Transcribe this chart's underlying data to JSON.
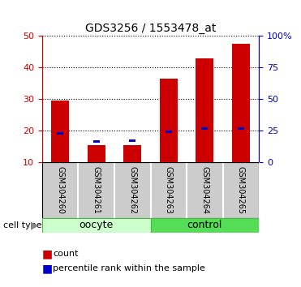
{
  "title": "GDS3256 / 1553478_at",
  "samples": [
    "GSM304260",
    "GSM304261",
    "GSM304262",
    "GSM304263",
    "GSM304264",
    "GSM304265"
  ],
  "count_values": [
    29.5,
    15.5,
    15.5,
    36.5,
    43.0,
    47.5
  ],
  "percentile_values": [
    23.0,
    16.5,
    17.0,
    24.0,
    26.5,
    26.5
  ],
  "groups": [
    {
      "label": "oocyte",
      "indices": [
        0,
        1,
        2
      ],
      "color": "#ccffcc",
      "edge": "#44bb44"
    },
    {
      "label": "control",
      "indices": [
        3,
        4,
        5
      ],
      "color": "#55dd55",
      "edge": "#44bb44"
    }
  ],
  "ylim_left": [
    10,
    50
  ],
  "ylim_right": [
    0,
    100
  ],
  "yticks_left": [
    10,
    20,
    30,
    40,
    50
  ],
  "yticks_right": [
    0,
    25,
    50,
    75,
    100
  ],
  "ytick_labels_right": [
    "0",
    "25",
    "50",
    "75",
    "100%"
  ],
  "left_axis_color": "#cc0000",
  "right_axis_color": "#0000cc",
  "bar_color": "#cc0000",
  "percentile_color": "#0000cc",
  "bar_width": 0.5,
  "percentile_bar_width": 0.18,
  "legend_count": "count",
  "legend_percentile": "percentile rank within the sample",
  "background_color": "#ffffff",
  "grid_color": "#000000",
  "bar_bottom": 10,
  "sample_box_color": "#cccccc",
  "sample_box_border": "#888888"
}
